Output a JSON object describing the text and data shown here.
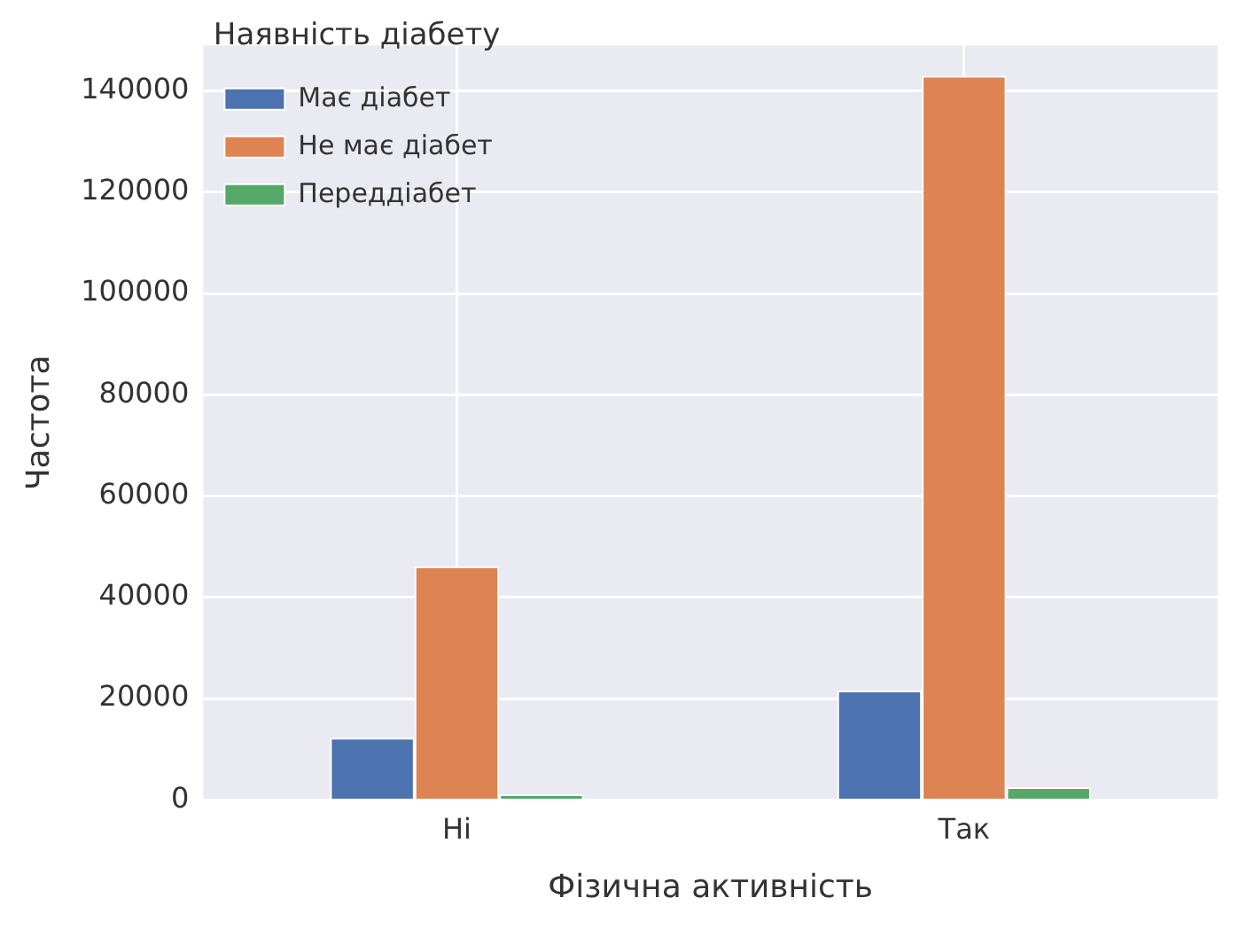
{
  "chart_data": {
    "type": "bar",
    "xlabel": "Фізична активність",
    "ylabel": "Частота",
    "legend_title": "Наявність діабету",
    "categories": [
      "Ні",
      "Так"
    ],
    "series": [
      {
        "name": "Має діабет",
        "color": "#4c72b0",
        "values": [
          12300,
          21600
        ]
      },
      {
        "name": "Не має діабет",
        "color": "#dd8452",
        "values": [
          46100,
          143000
        ]
      },
      {
        "name": "Переддіабет",
        "color": "#55a868",
        "values": [
          1100,
          2500
        ]
      }
    ],
    "ylim": [
      0,
      149000
    ],
    "yticks": [
      0,
      20000,
      40000,
      60000,
      80000,
      100000,
      120000,
      140000
    ],
    "grid": true,
    "legend": "top left"
  }
}
